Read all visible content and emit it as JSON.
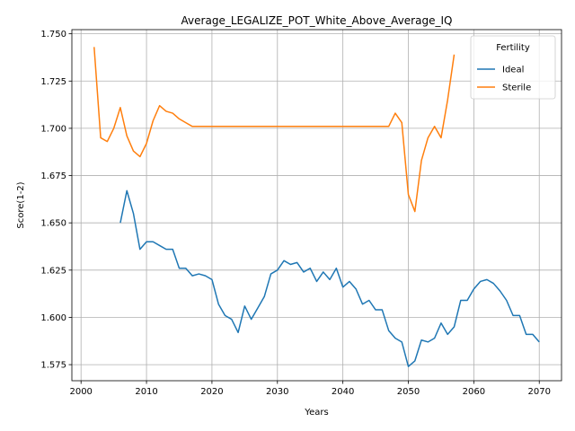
{
  "chart_data": {
    "type": "line",
    "title": "Average_LEGALIZE_POT_White_Above_Average_IQ",
    "xlabel": "Years",
    "ylabel": "Score(1-2)",
    "xlim": [
      1998.6,
      2073.4
    ],
    "ylim": [
      1.5665,
      1.7522
    ],
    "xticks": [
      2000,
      2010,
      2020,
      2030,
      2040,
      2050,
      2060,
      2070
    ],
    "yticks": [
      1.575,
      1.6,
      1.625,
      1.65,
      1.675,
      1.7,
      1.725,
      1.75
    ],
    "xtick_labels": [
      "2000",
      "2010",
      "2020",
      "2030",
      "2040",
      "2050",
      "2060",
      "2070"
    ],
    "ytick_labels": [
      "1.575",
      "1.600",
      "1.625",
      "1.650",
      "1.675",
      "1.700",
      "1.725",
      "1.750"
    ],
    "grid": true,
    "legend": {
      "title": "Fertility",
      "placement": "top-right"
    },
    "series": [
      {
        "name": "Ideal",
        "color": "#1f77b4",
        "x": [
          2006,
          2007,
          2008,
          2009,
          2010,
          2011,
          2012,
          2013,
          2014,
          2015,
          2016,
          2017,
          2018,
          2019,
          2020,
          2021,
          2022,
          2023,
          2024,
          2025,
          2026,
          2027,
          2028,
          2029,
          2030,
          2031,
          2032,
          2033,
          2034,
          2035,
          2036,
          2037,
          2038,
          2039,
          2040,
          2041,
          2042,
          2043,
          2044,
          2045,
          2046,
          2047,
          2048,
          2049,
          2050,
          2051,
          2052,
          2053,
          2054,
          2055,
          2056,
          2057,
          2058,
          2059,
          2060,
          2061,
          2062,
          2063,
          2064,
          2065,
          2066,
          2067,
          2068,
          2069,
          2070
        ],
        "y": [
          1.65,
          1.667,
          1.655,
          1.636,
          1.64,
          1.64,
          1.638,
          1.636,
          1.636,
          1.626,
          1.626,
          1.622,
          1.623,
          1.622,
          1.62,
          1.607,
          1.601,
          1.599,
          1.592,
          1.606,
          1.599,
          1.605,
          1.611,
          1.623,
          1.625,
          1.63,
          1.628,
          1.629,
          1.624,
          1.626,
          1.619,
          1.624,
          1.62,
          1.626,
          1.616,
          1.619,
          1.615,
          1.607,
          1.609,
          1.604,
          1.604,
          1.593,
          1.589,
          1.587,
          1.574,
          1.577,
          1.588,
          1.587,
          1.589,
          1.597,
          1.591,
          1.595,
          1.609,
          1.609,
          1.615,
          1.619,
          1.62,
          1.618,
          1.614,
          1.609,
          1.601,
          1.601,
          1.591,
          1.591,
          1.587
        ]
      },
      {
        "name": "Sterile",
        "color": "#ff7f0e",
        "x": [
          2002,
          2003,
          2004,
          2005,
          2006,
          2007,
          2008,
          2009,
          2010,
          2011,
          2012,
          2013,
          2014,
          2015,
          2016,
          2017,
          2018,
          2019,
          2020,
          2021,
          2022,
          2023,
          2024,
          2025,
          2026,
          2027,
          2028,
          2029,
          2030,
          2031,
          2032,
          2033,
          2034,
          2035,
          2036,
          2037,
          2038,
          2039,
          2040,
          2041,
          2042,
          2043,
          2044,
          2045,
          2046,
          2047,
          2048,
          2049,
          2050,
          2051,
          2052,
          2053,
          2054,
          2055,
          2056,
          2057
        ],
        "y": [
          1.743,
          1.695,
          1.693,
          1.7,
          1.711,
          1.696,
          1.688,
          1.685,
          1.692,
          1.704,
          1.712,
          1.709,
          1.708,
          1.705,
          1.703,
          1.701,
          1.701,
          1.701,
          1.701,
          1.701,
          1.701,
          1.701,
          1.701,
          1.701,
          1.701,
          1.701,
          1.701,
          1.701,
          1.701,
          1.701,
          1.701,
          1.701,
          1.701,
          1.701,
          1.701,
          1.701,
          1.701,
          1.701,
          1.701,
          1.701,
          1.701,
          1.701,
          1.701,
          1.701,
          1.701,
          1.701,
          1.708,
          1.703,
          1.665,
          1.656,
          1.683,
          1.695,
          1.701,
          1.695,
          1.715,
          1.739
        ]
      }
    ]
  }
}
